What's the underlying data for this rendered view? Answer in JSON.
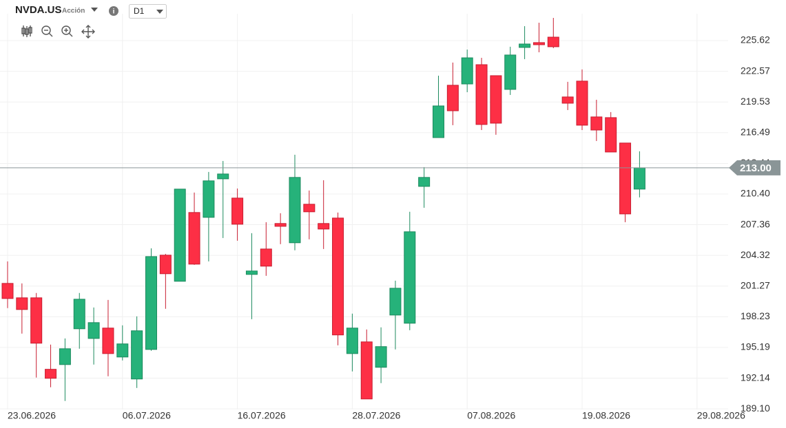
{
  "header": {
    "symbol": "NVDA.US",
    "kind": "Acción",
    "interval": "D1"
  },
  "chart_data": {
    "type": "candlestick",
    "up_color": "#26b27a",
    "down_color": "#fd2f45",
    "grid": true,
    "xticks": [
      "23.06.2026",
      "06.07.2026",
      "16.07.2026",
      "28.07.2026",
      "07.08.2026",
      "19.08.2026",
      "29.08.2026"
    ],
    "open": [
      201.54,
      200.11,
      200.11,
      193.02,
      193.49,
      197.04,
      196.08,
      197.11,
      194.24,
      192.06,
      194.99,
      204.34,
      201.75,
      208.57,
      208.09,
      211.91,
      210.0,
      202.43,
      204.95,
      207.48,
      205.57,
      209.39,
      207.48,
      208.02,
      194.58,
      195.74,
      193.22,
      198.4,
      197.59,
      211.16,
      216.0,
      221.19,
      221.32,
      223.23,
      222.14,
      220.78,
      224.94,
      225.42,
      225.96,
      220.03,
      221.6,
      218.05,
      217.98,
      215.46,
      210.89
    ],
    "high": [
      203.72,
      201.54,
      200.59,
      195.47,
      196.08,
      200.59,
      199.15,
      199.9,
      197.38,
      198.27,
      205.02,
      204.47,
      210.89,
      210.55,
      212.59,
      213.68,
      210.95,
      206.52,
      207.61,
      208.5,
      214.3,
      210.75,
      211.77,
      208.57,
      198.54,
      196.97,
      197.18,
      201.81,
      208.64,
      213.07,
      222.14,
      223.44,
      224.73,
      223.91,
      222.14,
      225.01,
      227.05,
      227.39,
      227.87,
      221.53,
      222.76,
      219.75,
      218.53,
      215.46,
      214.64
    ],
    "low": [
      199.09,
      196.56,
      192.2,
      191.24,
      189.88,
      195.06,
      193.49,
      192.33,
      193.9,
      191.17,
      194.86,
      199.02,
      201.75,
      203.38,
      203.72,
      206.04,
      205.77,
      197.99,
      202.29,
      205.43,
      204.82,
      205.91,
      204.95,
      195.4,
      192.81,
      190.08,
      191.65,
      194.99,
      196.9,
      209.04,
      216.0,
      217.23,
      220.5,
      216.75,
      216.28,
      220.23,
      223.78,
      224.46,
      224.87,
      218.73,
      216.75,
      215.66,
      214.57,
      207.61,
      210.07
    ],
    "close": [
      200.04,
      198.95,
      195.61,
      192.13,
      195.06,
      199.97,
      197.65,
      194.58,
      195.54,
      196.84,
      204.2,
      202.5,
      210.89,
      203.45,
      211.71,
      212.39,
      207.41,
      202.77,
      203.25,
      207.2,
      212.05,
      208.64,
      206.93,
      196.43,
      197.11,
      190.08,
      195.27,
      201.06,
      206.66,
      212.05,
      219.14,
      218.66,
      223.91,
      217.3,
      217.43,
      224.19,
      225.28,
      225.21,
      225.01,
      219.41,
      217.23,
      216.75,
      214.57,
      208.43,
      213.0
    ],
    "ylim": [
      188.7,
      228.28
    ],
    "yticks": [
      {
        "value": 189.1,
        "label": "189.10"
      },
      {
        "value": 192.14,
        "label": "192.14"
      },
      {
        "value": 195.19,
        "label": "195.19"
      },
      {
        "value": 198.23,
        "label": "198.23"
      },
      {
        "value": 201.27,
        "label": "201.27"
      },
      {
        "value": 204.32,
        "label": "204.32"
      },
      {
        "value": 207.36,
        "label": "207.36"
      },
      {
        "value": 210.4,
        "label": "210.40"
      },
      {
        "value": 213.44,
        "label": "213.44"
      },
      {
        "value": 216.49,
        "label": "216.49"
      },
      {
        "value": 219.53,
        "label": "219.53"
      },
      {
        "value": 222.57,
        "label": "222.57"
      },
      {
        "value": 225.62,
        "label": "225.62"
      }
    ],
    "last_price": {
      "value": 213,
      "label": "213.00"
    }
  }
}
